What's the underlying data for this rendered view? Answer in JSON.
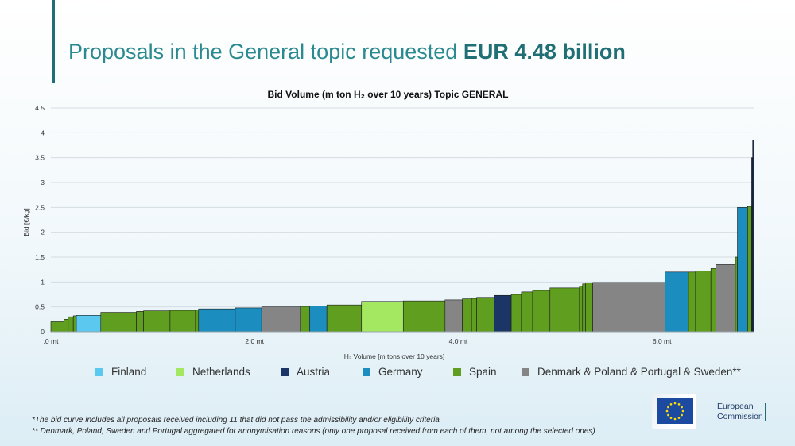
{
  "slide": {
    "title_main": "Proposals in the General topic requested ",
    "title_bold": "EUR 4.48 billion"
  },
  "colors": {
    "Finland": "#5bc8ef",
    "Netherlands": "#a3e860",
    "Austria": "#1b3566",
    "Germany": "#1b8dbe",
    "Spain": "#5f9e1e",
    "Aggregated": "#858585",
    "title": "#1f6f74"
  },
  "chart_data": {
    "type": "bar",
    "subtype": "variable-width step bid curve",
    "title": "Bid Volume (m ton H₂ over 10 years) Topic GENERAL",
    "xlabel": "H₂ Volume [m tons over 10 years]",
    "ylabel": "Bid [€/kg]",
    "xlim": [
      0,
      6.9
    ],
    "ylim": [
      0,
      4.5
    ],
    "x_ticks": [
      0,
      2,
      4,
      6
    ],
    "x_tick_labels": [
      ".0 mt",
      "2.0 mt",
      "4.0 mt",
      "6.0 mt"
    ],
    "y_ticks": [
      0,
      0.5,
      1,
      1.5,
      2,
      2.5,
      3,
      3.5,
      4,
      4.5
    ],
    "y_tick_labels": [
      "0",
      "0.5",
      "1",
      "1.5",
      "2",
      "2.5",
      "3",
      "3.5",
      "4",
      "4.5"
    ],
    "grid": true,
    "legend_position": "bottom",
    "legend": [
      {
        "name": "Finland",
        "key": "Finland"
      },
      {
        "name": "Netherlands",
        "key": "Netherlands"
      },
      {
        "name": "Austria",
        "key": "Austria"
      },
      {
        "name": "Germany",
        "key": "Germany"
      },
      {
        "name": "Spain",
        "key": "Spain"
      },
      {
        "name": "Denmark & Poland & Portugal & Sweden**",
        "key": "Aggregated"
      }
    ],
    "bids": [
      {
        "x0": 0.0,
        "x1": 0.13,
        "bid": 0.2,
        "group": "Spain"
      },
      {
        "x0": 0.13,
        "x1": 0.17,
        "bid": 0.25,
        "group": "Spain"
      },
      {
        "x0": 0.17,
        "x1": 0.22,
        "bid": 0.3,
        "group": "Spain"
      },
      {
        "x0": 0.22,
        "x1": 0.25,
        "bid": 0.32,
        "group": "Spain"
      },
      {
        "x0": 0.25,
        "x1": 0.49,
        "bid": 0.33,
        "group": "Finland"
      },
      {
        "x0": 0.49,
        "x1": 0.84,
        "bid": 0.39,
        "group": "Spain"
      },
      {
        "x0": 0.84,
        "x1": 0.91,
        "bid": 0.41,
        "group": "Spain"
      },
      {
        "x0": 0.91,
        "x1": 1.17,
        "bid": 0.42,
        "group": "Spain"
      },
      {
        "x0": 1.17,
        "x1": 1.42,
        "bid": 0.43,
        "group": "Spain"
      },
      {
        "x0": 1.42,
        "x1": 1.45,
        "bid": 0.44,
        "group": "Spain"
      },
      {
        "x0": 1.45,
        "x1": 1.81,
        "bid": 0.46,
        "group": "Germany"
      },
      {
        "x0": 1.81,
        "x1": 2.07,
        "bid": 0.48,
        "group": "Germany"
      },
      {
        "x0": 2.07,
        "x1": 2.45,
        "bid": 0.5,
        "group": "Aggregated"
      },
      {
        "x0": 2.45,
        "x1": 2.54,
        "bid": 0.51,
        "group": "Spain"
      },
      {
        "x0": 2.54,
        "x1": 2.71,
        "bid": 0.52,
        "group": "Germany"
      },
      {
        "x0": 2.71,
        "x1": 3.05,
        "bid": 0.54,
        "group": "Spain"
      },
      {
        "x0": 3.05,
        "x1": 3.46,
        "bid": 0.61,
        "group": "Netherlands"
      },
      {
        "x0": 3.46,
        "x1": 3.87,
        "bid": 0.62,
        "group": "Spain"
      },
      {
        "x0": 3.87,
        "x1": 4.04,
        "bid": 0.64,
        "group": "Aggregated"
      },
      {
        "x0": 4.04,
        "x1": 4.13,
        "bid": 0.66,
        "group": "Spain"
      },
      {
        "x0": 4.13,
        "x1": 4.18,
        "bid": 0.67,
        "group": "Spain"
      },
      {
        "x0": 4.18,
        "x1": 4.35,
        "bid": 0.69,
        "group": "Spain"
      },
      {
        "x0": 4.35,
        "x1": 4.52,
        "bid": 0.73,
        "group": "Austria"
      },
      {
        "x0": 4.52,
        "x1": 4.62,
        "bid": 0.75,
        "group": "Spain"
      },
      {
        "x0": 4.62,
        "x1": 4.73,
        "bid": 0.8,
        "group": "Spain"
      },
      {
        "x0": 4.73,
        "x1": 4.9,
        "bid": 0.83,
        "group": "Spain"
      },
      {
        "x0": 4.9,
        "x1": 5.19,
        "bid": 0.88,
        "group": "Spain"
      },
      {
        "x0": 5.19,
        "x1": 5.22,
        "bid": 0.92,
        "group": "Spain"
      },
      {
        "x0": 5.22,
        "x1": 5.25,
        "bid": 0.96,
        "group": "Spain"
      },
      {
        "x0": 5.25,
        "x1": 5.32,
        "bid": 0.98,
        "group": "Spain"
      },
      {
        "x0": 5.32,
        "x1": 6.03,
        "bid": 0.99,
        "group": "Aggregated"
      },
      {
        "x0": 6.03,
        "x1": 6.26,
        "bid": 1.2,
        "group": "Germany"
      },
      {
        "x0": 6.26,
        "x1": 6.33,
        "bid": 1.2,
        "group": "Spain"
      },
      {
        "x0": 6.33,
        "x1": 6.48,
        "bid": 1.22,
        "group": "Spain"
      },
      {
        "x0": 6.48,
        "x1": 6.53,
        "bid": 1.27,
        "group": "Spain"
      },
      {
        "x0": 6.53,
        "x1": 6.72,
        "bid": 1.35,
        "group": "Aggregated"
      },
      {
        "x0": 6.72,
        "x1": 6.74,
        "bid": 1.5,
        "group": "Spain"
      },
      {
        "x0": 6.74,
        "x1": 6.84,
        "bid": 2.5,
        "group": "Germany"
      },
      {
        "x0": 6.84,
        "x1": 6.88,
        "bid": 2.52,
        "group": "Spain"
      },
      {
        "x0": 6.88,
        "x1": 6.89,
        "bid": 3.5,
        "group": "Austria"
      },
      {
        "x0": 6.89,
        "x1": 6.9,
        "bid": 3.85,
        "group": "Austria"
      }
    ]
  },
  "footnotes": {
    "note1": "*The bid curve includes all proposals received including 11 that did not pass the admissibility and/or eligibility criteria",
    "note2": "** Denmark, Poland, Sweden and Portugal aggregated for anonymisation reasons (only one proposal received from each of them, not among the selected ones)"
  },
  "logo": {
    "line1": "European",
    "line2": "Commission",
    "icon": "eu-flag-icon"
  }
}
